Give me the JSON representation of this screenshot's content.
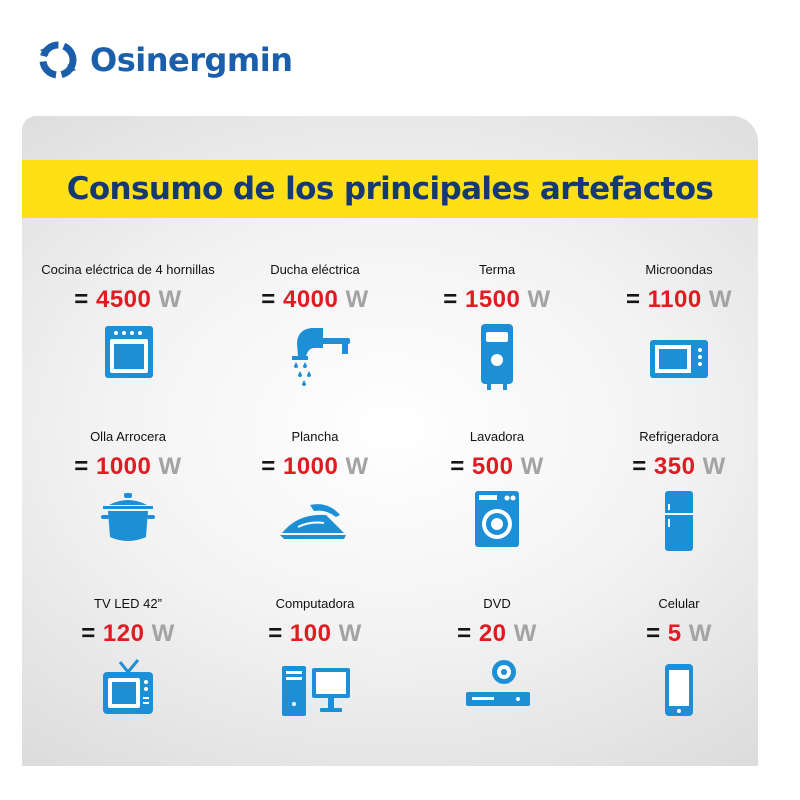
{
  "brand": {
    "name": "Osinergmin"
  },
  "banner": {
    "title": "Consumo de los principales artefactos"
  },
  "items": [
    {
      "name": "Cocina eléctrica de 4 hornillas",
      "eq": "=",
      "value": "4500",
      "unit": "W",
      "icon": "stove-icon"
    },
    {
      "name": "Ducha eléctrica",
      "eq": "=",
      "value": "4000",
      "unit": "W",
      "icon": "shower-icon"
    },
    {
      "name": "Terma",
      "eq": "=",
      "value": "1500",
      "unit": "W",
      "icon": "water-heater-icon"
    },
    {
      "name": "Microondas",
      "eq": "=",
      "value": "1100",
      "unit": "W",
      "icon": "microwave-icon"
    },
    {
      "name": "Olla Arrocera",
      "eq": "=",
      "value": "1000",
      "unit": "W",
      "icon": "rice-cooker-icon"
    },
    {
      "name": "Plancha",
      "eq": "=",
      "value": "1000",
      "unit": "W",
      "icon": "iron-icon"
    },
    {
      "name": "Lavadora",
      "eq": "=",
      "value": "500",
      "unit": "W",
      "icon": "washing-machine-icon"
    },
    {
      "name": "Refrigeradora",
      "eq": "=",
      "value": "350",
      "unit": "W",
      "icon": "refrigerator-icon"
    },
    {
      "name": "TV LED 42”",
      "eq": "=",
      "value": "120",
      "unit": "W",
      "icon": "tv-icon"
    },
    {
      "name": "Computadora",
      "eq": "=",
      "value": "100",
      "unit": "W",
      "icon": "computer-icon"
    },
    {
      "name": "DVD",
      "eq": "=",
      "value": "20",
      "unit": "W",
      "icon": "dvd-player-icon"
    },
    {
      "name": "Celular",
      "eq": "=",
      "value": "5",
      "unit": "W",
      "icon": "cellphone-icon"
    }
  ],
  "colors": {
    "icon_blue": "#1d8fd6",
    "brand_blue": "#1b5fab",
    "banner_yellow": "#ffe017",
    "value_red": "#e01b22",
    "unit_gray": "#a3a3a3"
  }
}
